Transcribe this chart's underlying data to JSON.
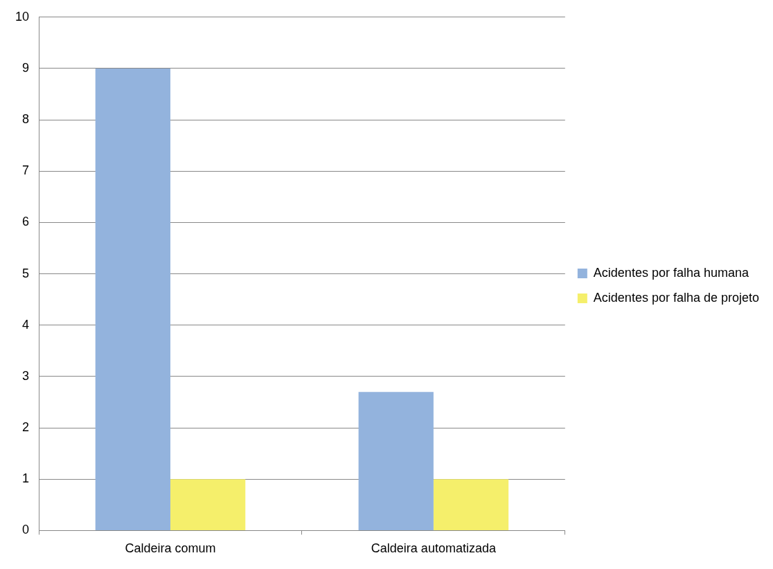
{
  "chart_data": {
    "type": "bar",
    "categories": [
      "Caldeira comum",
      "Caldeira automatizada"
    ],
    "series": [
      {
        "name": "Acidentes por falha humana",
        "color": "#93b3dd",
        "values": [
          9,
          2.7
        ]
      },
      {
        "name": "Acidentes por falha de projeto",
        "color": "#f5ef6b",
        "values": [
          1,
          1
        ]
      }
    ],
    "ylim": [
      0,
      10
    ],
    "yticks": [
      0,
      1,
      2,
      3,
      4,
      5,
      6,
      7,
      8,
      9,
      10
    ],
    "grid": "y",
    "legend": "right"
  }
}
